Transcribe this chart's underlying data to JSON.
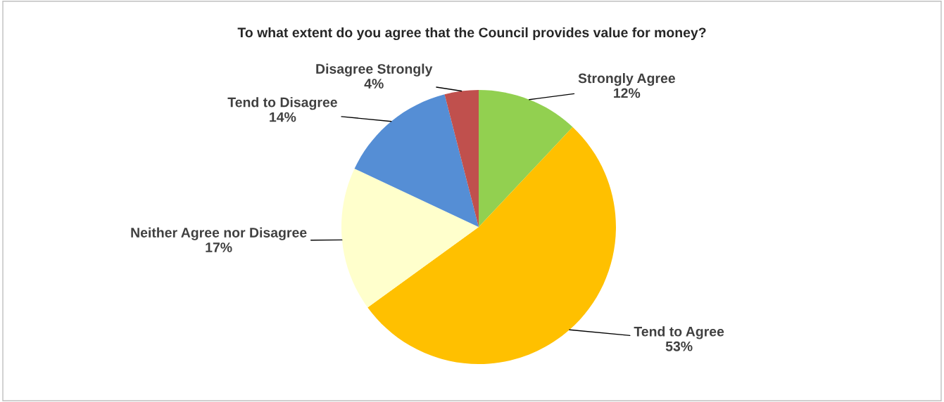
{
  "chart_data": {
    "type": "pie",
    "title": "To what extent do you agree that the Council provides value for money?",
    "categories": [
      "Strongly Agree",
      "Tend to Agree",
      "Neither Agree nor Disagree",
      "Tend to Disagree",
      "Disagree Strongly"
    ],
    "values": [
      12,
      53,
      17,
      14,
      4
    ],
    "value_labels": [
      "12%",
      "53%",
      "17%",
      "14%",
      "4%"
    ],
    "colors": [
      "#92d050",
      "#ffc000",
      "#ffffcc",
      "#558ed5",
      "#c0504d"
    ],
    "legend": false
  }
}
